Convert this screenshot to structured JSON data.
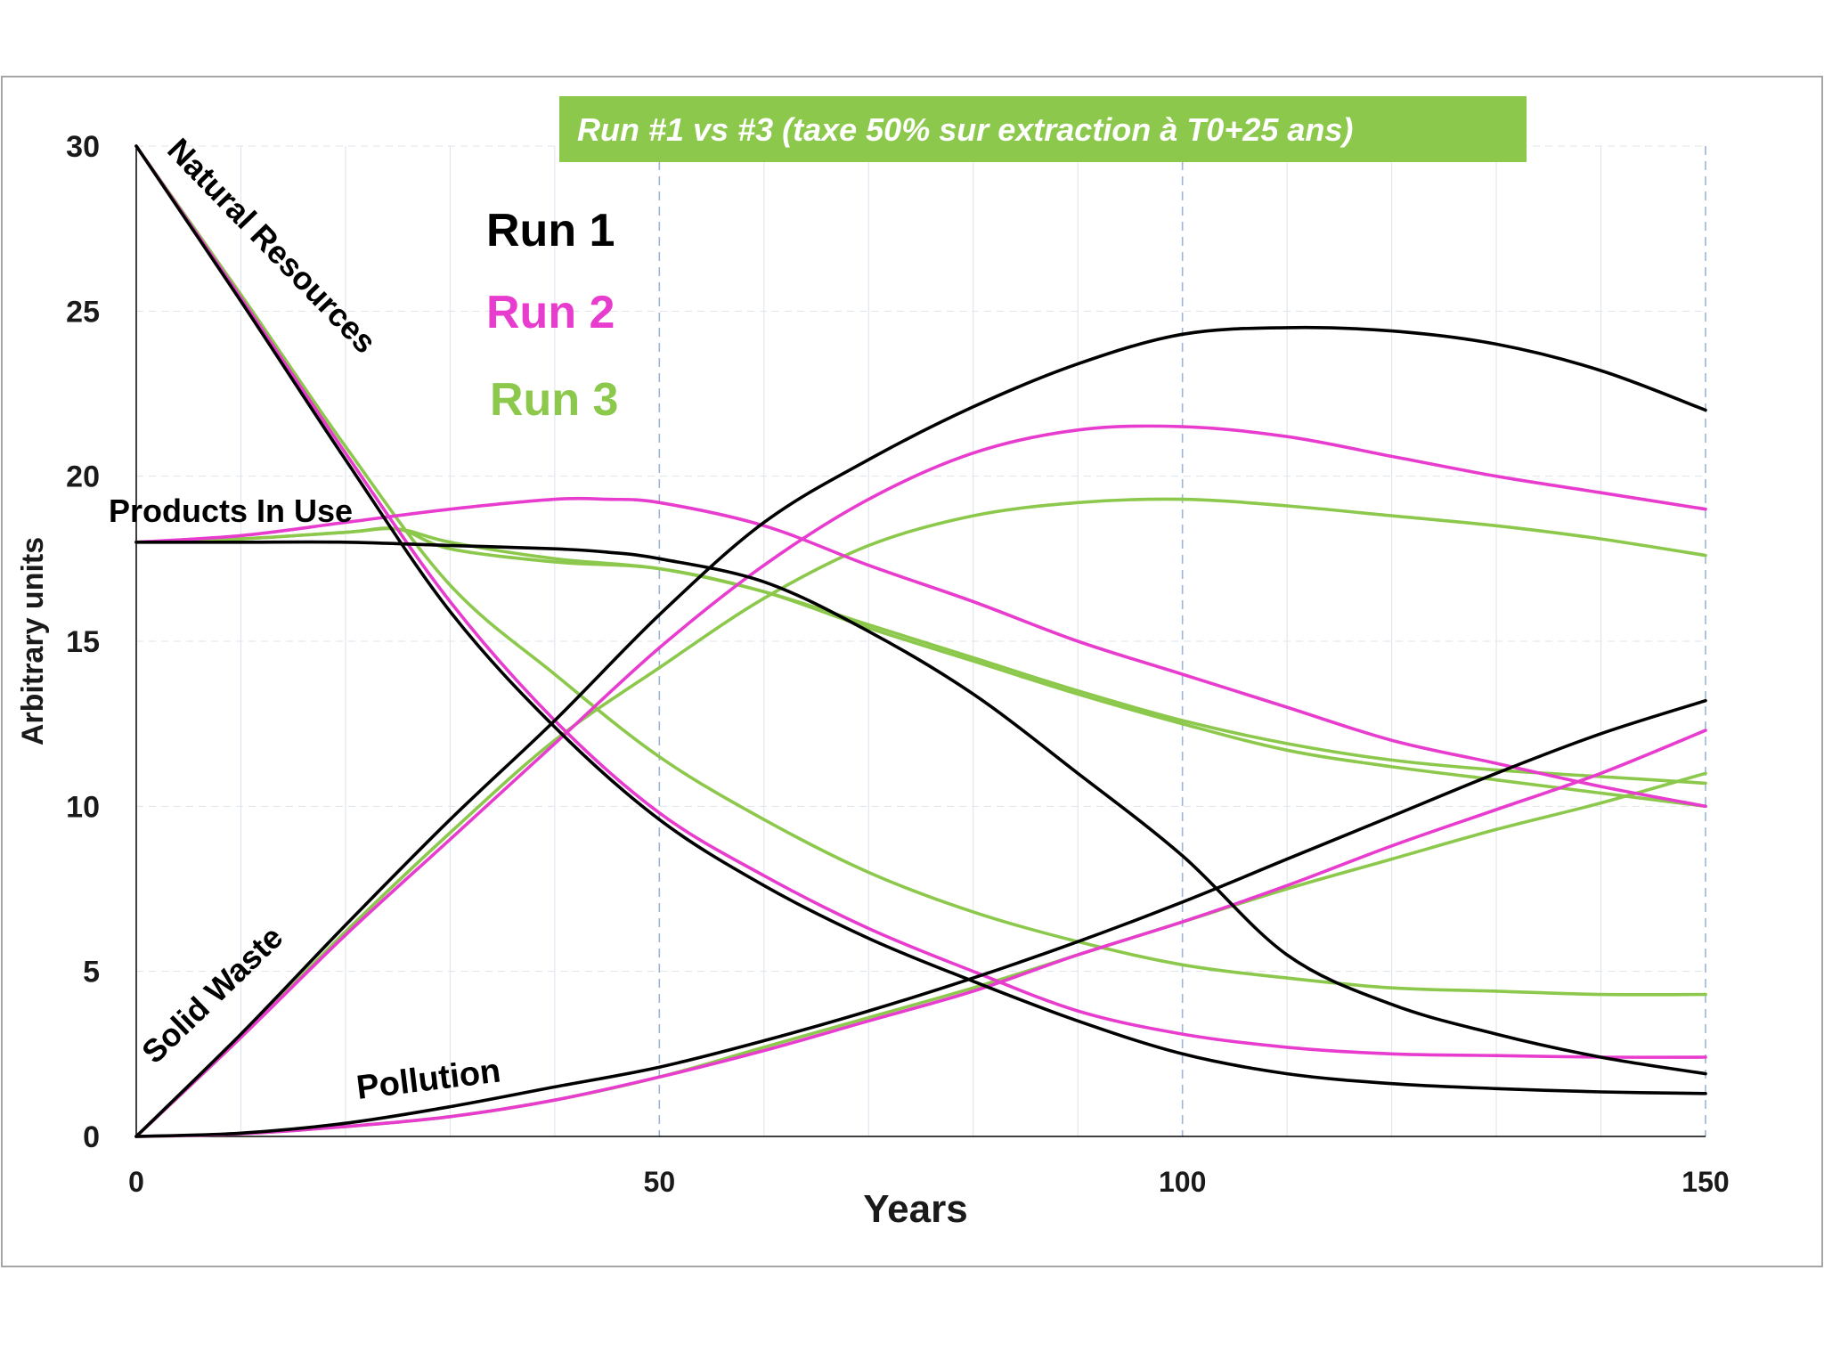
{
  "chart_data": {
    "type": "line",
    "title": "Run #1 vs #3 (taxe 50% sur extraction à T0+25 ans)",
    "xlabel": "Years",
    "ylabel": "Arbitrary units",
    "xlim": [
      0,
      150
    ],
    "ylim": [
      0,
      30
    ],
    "x_ticks": [
      "0",
      "50",
      "100",
      "150"
    ],
    "y_ticks": [
      "0",
      "5",
      "10",
      "15",
      "20",
      "25",
      "30"
    ],
    "grid": true,
    "legend": [
      {
        "name": "Run 1",
        "color": "#000000"
      },
      {
        "name": "Run 2",
        "color": "#e83ccf"
      },
      {
        "name": "Run 3",
        "color": "#8cc84b"
      }
    ],
    "annotations": {
      "natural_resources": "Natural Resources",
      "products_in_use": "Products In Use",
      "solid_waste": "Solid Waste",
      "pollution": "Pollution"
    },
    "series": [
      {
        "name": "Natural Resources - Run 1",
        "run": "Run 1",
        "color": "#000000",
        "x": [
          0,
          10,
          20,
          30,
          40,
          50,
          60,
          70,
          80,
          90,
          100,
          110,
          120,
          130,
          140,
          150
        ],
        "y": [
          30,
          25.3,
          20.5,
          15.9,
          12.4,
          9.6,
          7.6,
          6.0,
          4.7,
          3.5,
          2.5,
          1.9,
          1.6,
          1.45,
          1.35,
          1.3
        ]
      },
      {
        "name": "Natural Resources - Run 2",
        "run": "Run 2",
        "color": "#e83ccf",
        "x": [
          0,
          10,
          20,
          30,
          40,
          50,
          60,
          70,
          80,
          90,
          100,
          110,
          120,
          130,
          140,
          150
        ],
        "y": [
          30,
          25.4,
          20.7,
          16.2,
          12.6,
          9.8,
          7.9,
          6.3,
          5.0,
          3.8,
          3.1,
          2.7,
          2.5,
          2.45,
          2.4,
          2.4
        ]
      },
      {
        "name": "Natural Resources - Run 3",
        "run": "Run 3",
        "color": "#8cc84b",
        "x": [
          0,
          10,
          20,
          30,
          40,
          50,
          60,
          70,
          80,
          90,
          100,
          110,
          120,
          130,
          140,
          150
        ],
        "y": [
          30,
          25.5,
          20.9,
          16.7,
          14.0,
          11.5,
          9.6,
          8.0,
          6.8,
          5.9,
          5.2,
          4.8,
          4.5,
          4.4,
          4.3,
          4.3
        ]
      },
      {
        "name": "Products In Use - Run 1",
        "run": "Run 1",
        "color": "#000000",
        "x": [
          0,
          10,
          20,
          30,
          40,
          45,
          50,
          60,
          70,
          80,
          90,
          100,
          110,
          120,
          130,
          140,
          150
        ],
        "y": [
          18,
          18,
          18,
          17.9,
          17.8,
          17.7,
          17.5,
          16.8,
          15.3,
          13.4,
          11.0,
          8.5,
          5.5,
          4.0,
          3.1,
          2.4,
          1.9
        ]
      },
      {
        "name": "Products In Use - Run 2",
        "run": "Run 2",
        "color": "#e83ccf",
        "x": [
          0,
          10,
          20,
          30,
          40,
          45,
          50,
          60,
          70,
          80,
          90,
          100,
          110,
          120,
          130,
          140,
          150
        ],
        "y": [
          18,
          18.2,
          18.6,
          19.0,
          19.3,
          19.3,
          19.2,
          18.5,
          17.3,
          16.2,
          15.0,
          14.0,
          13.0,
          12.0,
          11.3,
          10.6,
          10.0
        ]
      },
      {
        "name": "Products In Use - Run 3a",
        "run": "Run 3",
        "color": "#8cc84b",
        "x": [
          0,
          10,
          20,
          25,
          30,
          40,
          50,
          60,
          70,
          80,
          90,
          100,
          110,
          120,
          130,
          140,
          150
        ],
        "y": [
          18,
          18.1,
          18.3,
          18.4,
          17.8,
          17.4,
          17.2,
          16.5,
          15.4,
          14.4,
          13.4,
          12.5,
          11.7,
          11.2,
          10.8,
          10.4,
          10.0
        ]
      },
      {
        "name": "Products In Use - Run 3b",
        "run": "Run 3",
        "color": "#8cc84b",
        "x": [
          0,
          10,
          20,
          25,
          30,
          40,
          50,
          60,
          70,
          80,
          90,
          100,
          110,
          120,
          130,
          140,
          150
        ],
        "y": [
          18,
          18.1,
          18.3,
          18.4,
          18.0,
          17.5,
          17.2,
          16.5,
          15.5,
          14.5,
          13.5,
          12.6,
          11.9,
          11.4,
          11.1,
          10.9,
          10.7
        ]
      },
      {
        "name": "Solid Waste - Run 1",
        "run": "Run 1",
        "color": "#000000",
        "x": [
          0,
          10,
          20,
          30,
          40,
          50,
          60,
          70,
          80,
          90,
          100,
          110,
          120,
          130,
          140,
          150
        ],
        "y": [
          0,
          3.1,
          6.4,
          9.6,
          12.6,
          15.8,
          18.6,
          20.5,
          22.1,
          23.4,
          24.3,
          24.5,
          24.4,
          24.0,
          23.2,
          22.0
        ]
      },
      {
        "name": "Solid Waste - Run 2",
        "run": "Run 2",
        "color": "#e83ccf",
        "x": [
          0,
          10,
          20,
          30,
          40,
          50,
          60,
          70,
          80,
          90,
          100,
          110,
          120,
          130,
          140,
          150
        ],
        "y": [
          0,
          3.0,
          6.1,
          9.0,
          11.9,
          14.8,
          17.3,
          19.3,
          20.7,
          21.4,
          21.5,
          21.2,
          20.6,
          20.0,
          19.5,
          19.0
        ]
      },
      {
        "name": "Solid Waste - Run 3",
        "run": "Run 3",
        "color": "#8cc84b",
        "x": [
          0,
          10,
          20,
          30,
          40,
          50,
          60,
          70,
          80,
          90,
          100,
          110,
          120,
          130,
          140,
          150
        ],
        "y": [
          0,
          3.0,
          6.2,
          9.2,
          12.0,
          14.2,
          16.3,
          17.9,
          18.8,
          19.2,
          19.3,
          19.1,
          18.8,
          18.5,
          18.1,
          17.6
        ]
      },
      {
        "name": "Pollution - Run 1",
        "run": "Run 1",
        "color": "#000000",
        "x": [
          0,
          10,
          20,
          30,
          40,
          50,
          60,
          70,
          80,
          90,
          100,
          110,
          120,
          130,
          140,
          150
        ],
        "y": [
          0,
          0.1,
          0.4,
          0.9,
          1.5,
          2.1,
          2.9,
          3.8,
          4.8,
          5.9,
          7.1,
          8.4,
          9.7,
          11.0,
          12.2,
          13.2
        ]
      },
      {
        "name": "Pollution - Run 2",
        "run": "Run 2",
        "color": "#e83ccf",
        "x": [
          0,
          10,
          20,
          30,
          40,
          50,
          60,
          70,
          80,
          90,
          100,
          110,
          120,
          130,
          140,
          150
        ],
        "y": [
          0,
          0.08,
          0.3,
          0.6,
          1.1,
          1.8,
          2.6,
          3.5,
          4.4,
          5.5,
          6.5,
          7.6,
          8.8,
          9.9,
          11.0,
          12.3
        ]
      },
      {
        "name": "Pollution - Run 3",
        "run": "Run 3",
        "color": "#8cc84b",
        "x": [
          0,
          10,
          20,
          30,
          40,
          50,
          60,
          70,
          80,
          90,
          100,
          110,
          120,
          130,
          140,
          150
        ],
        "y": [
          0,
          0.08,
          0.3,
          0.6,
          1.1,
          1.8,
          2.7,
          3.6,
          4.5,
          5.5,
          6.5,
          7.5,
          8.4,
          9.3,
          10.1,
          11.0
        ]
      }
    ]
  }
}
